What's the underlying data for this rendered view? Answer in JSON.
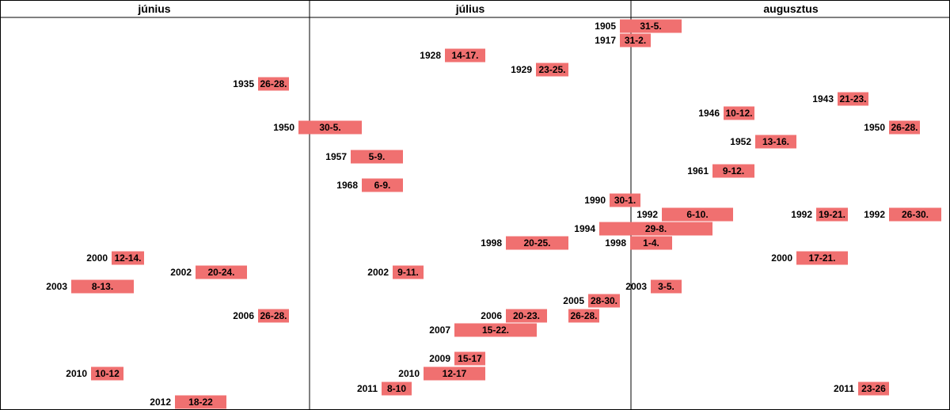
{
  "chart_data": {
    "type": "bar",
    "orientation": "horizontal-timeline",
    "months": [
      "június",
      "július",
      "augusztus"
    ],
    "bar_color": "#f07070",
    "grid": "month-borders",
    "series": [
      {
        "year": "1905",
        "label": "31-5.",
        "start": 62,
        "end": 67
      },
      {
        "year": "1917",
        "label": "31-2.",
        "start": 62,
        "end": 64
      },
      {
        "year": "1928",
        "label": "14-17.",
        "start": 45,
        "end": 49
      },
      {
        "year": "1929",
        "label": "23-25.",
        "start": 54,
        "end": 57
      },
      {
        "year": "1935",
        "label": "26-28.",
        "start": 26,
        "end": 29
      },
      {
        "year": "1943",
        "label": "21-23.",
        "start": 83,
        "end": 86
      },
      {
        "year": "1946",
        "label": "10-12.",
        "start": 72,
        "end": 75
      },
      {
        "year": "1950",
        "label": "30-5.",
        "start": 30,
        "end": 36
      },
      {
        "year": "1950",
        "label": "26-28.",
        "start": 88,
        "end": 91
      },
      {
        "year": "1952",
        "label": "13-16.",
        "start": 75,
        "end": 79
      },
      {
        "year": "1957",
        "label": "5-9.",
        "start": 35,
        "end": 40
      },
      {
        "year": "1961",
        "label": "9-12.",
        "start": 71,
        "end": 75
      },
      {
        "year": "1968",
        "label": "6-9.",
        "start": 36,
        "end": 40
      },
      {
        "year": "1990",
        "label": "30-1.",
        "start": 60,
        "end": 63
      },
      {
        "year": "1992",
        "label": "6-10.",
        "start": 68,
        "end": 73
      },
      {
        "year": "1992",
        "label": "19-21.",
        "start": 81,
        "end": 84
      },
      {
        "year": "1992",
        "label": "26-30.",
        "start": 88,
        "end": 93
      },
      {
        "year": "1994",
        "label": "29-8.",
        "start": 59,
        "end": 70
      },
      {
        "year": "1998",
        "label": "20-25.",
        "start": 50,
        "end": 56
      },
      {
        "year": "1998",
        "label": "1-4.",
        "start": 62,
        "end": 66
      },
      {
        "year": "2000",
        "label": "12-14.",
        "start": 11,
        "end": 14
      },
      {
        "year": "2000",
        "label": "17-21.",
        "start": 79,
        "end": 84
      },
      {
        "year": "2002",
        "label": "20-24.",
        "start": 19,
        "end": 24
      },
      {
        "year": "2002",
        "label": "9-11.",
        "start": 39,
        "end": 42
      },
      {
        "year": "2003",
        "label": "8-13.",
        "start": 7,
        "end": 13
      },
      {
        "year": "2003",
        "label": "3-5.",
        "start": 64,
        "end": 67
      },
      {
        "year": "2005",
        "label": "28-30.",
        "start": 58,
        "end": 61
      },
      {
        "year": "2006",
        "label": "26-28.",
        "start": 26,
        "end": 29
      },
      {
        "year": "2006",
        "label": "20-23.",
        "start": 50,
        "end": 54
      },
      {
        "year": "",
        "label": "26-28.",
        "start": 56,
        "end": 59
      },
      {
        "year": "2007",
        "label": "15-22.",
        "start": 45,
        "end": 53
      },
      {
        "year": "2009",
        "label": "15-17",
        "start": 45,
        "end": 48
      },
      {
        "year": "2010",
        "label": "10-12",
        "start": 9,
        "end": 12
      },
      {
        "year": "2010",
        "label": "12-17",
        "start": 42,
        "end": 48
      },
      {
        "year": "2011",
        "label": "8-10",
        "start": 38,
        "end": 41
      },
      {
        "year": "2011",
        "label": "23-26",
        "start": 85,
        "end": 89
      },
      {
        "year": "2012",
        "label": "18-22",
        "start": 17,
        "end": 22
      }
    ]
  }
}
